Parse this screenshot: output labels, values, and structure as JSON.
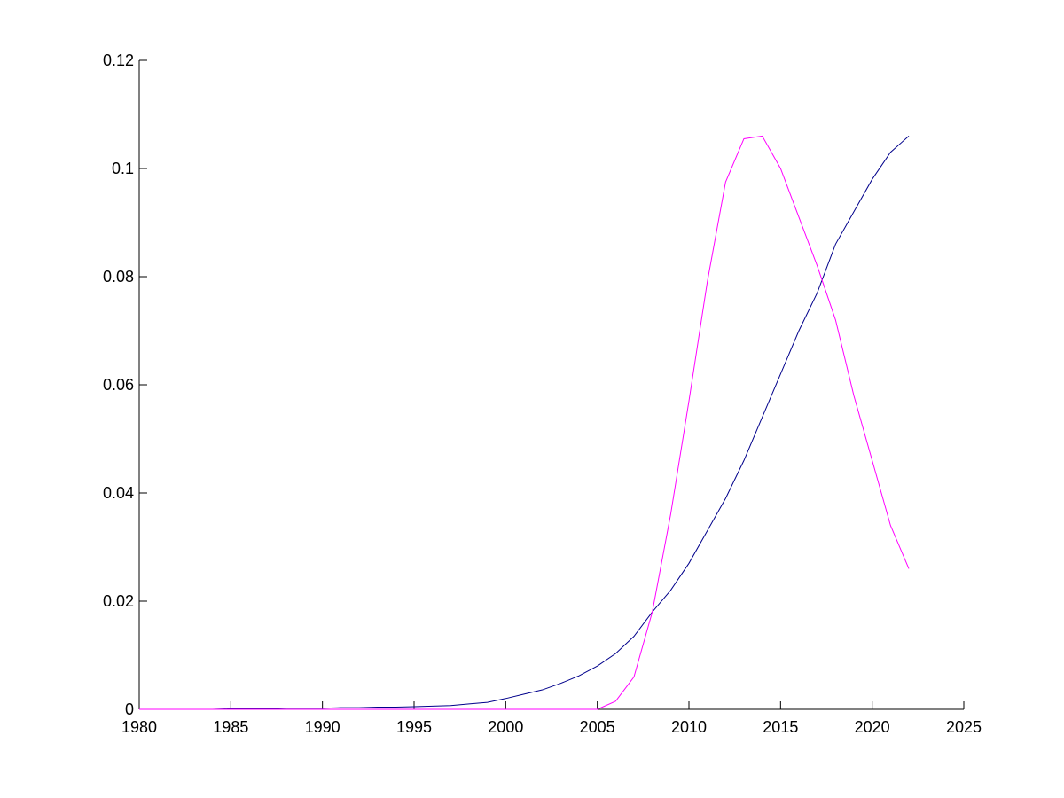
{
  "chart_data": {
    "type": "line",
    "x": [
      1980,
      1981,
      1982,
      1983,
      1984,
      1985,
      1986,
      1987,
      1988,
      1989,
      1990,
      1991,
      1992,
      1993,
      1994,
      1995,
      1996,
      1997,
      1998,
      1999,
      2000,
      2001,
      2002,
      2003,
      2004,
      2005,
      2006,
      2007,
      2008,
      2009,
      2010,
      2011,
      2012,
      2013,
      2014,
      2015,
      2016,
      2017,
      2018,
      2019,
      2020,
      2021,
      2022
    ],
    "series": [
      {
        "color": "#00008b",
        "values": [
          0,
          0,
          0,
          0,
          0,
          0.0001,
          0.0001,
          0.0001,
          0.0002,
          0.0002,
          0.0002,
          0.0003,
          0.0003,
          0.0004,
          0.0004,
          0.0005,
          0.0006,
          0.0007,
          0.001,
          0.0013,
          0.002,
          0.0028,
          0.0036,
          0.0048,
          0.0062,
          0.008,
          0.0103,
          0.0135,
          0.018,
          0.022,
          0.027,
          0.033,
          0.039,
          0.046,
          0.054,
          0.062,
          0.07,
          0.077,
          0.086,
          0.092,
          0.098,
          0.103,
          0.106
        ]
      },
      {
        "color": "#ff00ff",
        "values": [
          0,
          0,
          0,
          0,
          0,
          0,
          0,
          0,
          0,
          0,
          0,
          0,
          0,
          0,
          0,
          0,
          0,
          0,
          0,
          0,
          0,
          0,
          0,
          0,
          0,
          0,
          0.0015,
          0.006,
          0.018,
          0.036,
          0.057,
          0.079,
          0.0975,
          0.1055,
          0.106,
          0.1,
          0.091,
          0.082,
          0.072,
          0.058,
          0.046,
          0.034,
          0.026
        ]
      }
    ],
    "xlim": [
      1980,
      2025
    ],
    "xticks": [
      1980,
      1985,
      1990,
      1995,
      2000,
      2005,
      2010,
      2015,
      2020,
      2025
    ],
    "ylim": [
      0,
      0.12
    ],
    "yticks": [
      0,
      0.02,
      0.04,
      0.06,
      0.08,
      0.1,
      0.12
    ]
  }
}
